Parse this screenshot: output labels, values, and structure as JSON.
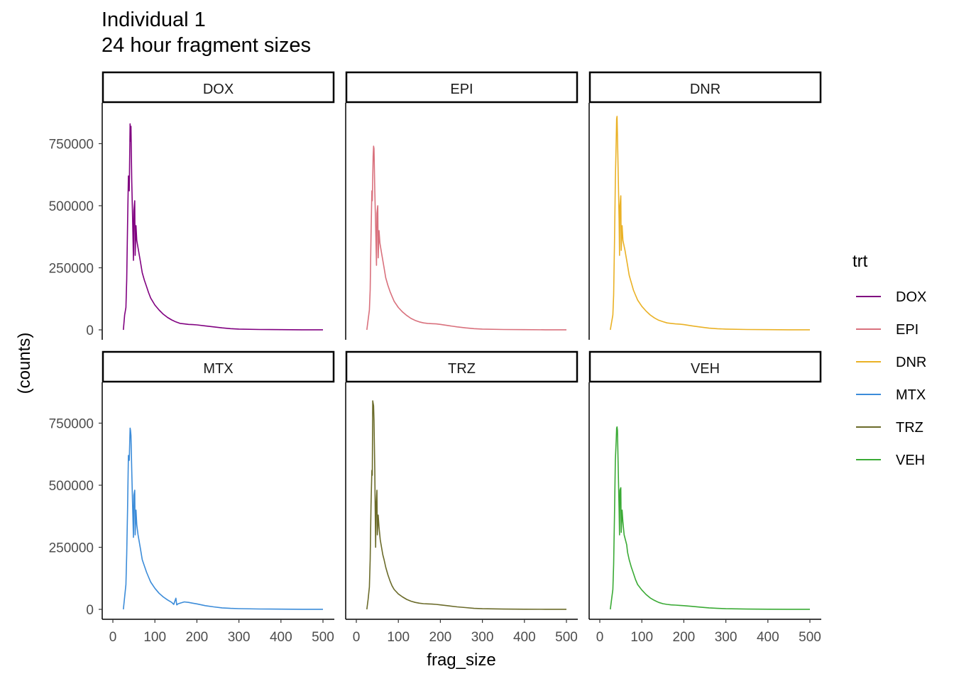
{
  "title": {
    "line1": "Individual 1",
    "line2": "24 hour fragment sizes"
  },
  "chart_data": {
    "type": "line",
    "xlabel": "frag_size",
    "ylabel": "(counts)",
    "xlim": [
      0,
      500
    ],
    "ylim": [
      0,
      900000
    ],
    "x_ticks": [
      0,
      100,
      200,
      300,
      400,
      500
    ],
    "y_ticks": [
      0,
      250000,
      500000,
      750000
    ],
    "grid": false,
    "legend": {
      "title": "trt",
      "placement": "right",
      "entries": [
        "DOX",
        "EPI",
        "DNR",
        "MTX",
        "TRZ",
        "VEH"
      ]
    },
    "facets": [
      {
        "name": "DOX",
        "color": "#800080",
        "points": [
          [
            25,
            0
          ],
          [
            28,
            60000
          ],
          [
            31,
            90000
          ],
          [
            33,
            200000
          ],
          [
            35,
            420000
          ],
          [
            37,
            620000
          ],
          [
            39,
            560000
          ],
          [
            41,
            830000
          ],
          [
            42,
            760000
          ],
          [
            43,
            820000
          ],
          [
            45,
            600000
          ],
          [
            47,
            450000
          ],
          [
            49,
            280000
          ],
          [
            50,
            480000
          ],
          [
            52,
            520000
          ],
          [
            53,
            300000
          ],
          [
            55,
            420000
          ],
          [
            57,
            360000
          ],
          [
            60,
            330000
          ],
          [
            63,
            300000
          ],
          [
            66,
            270000
          ],
          [
            70,
            230000
          ],
          [
            75,
            200000
          ],
          [
            80,
            175000
          ],
          [
            85,
            150000
          ],
          [
            90,
            128000
          ],
          [
            100,
            100000
          ],
          [
            110,
            80000
          ],
          [
            120,
            63000
          ],
          [
            130,
            50000
          ],
          [
            140,
            40000
          ],
          [
            150,
            32000
          ],
          [
            160,
            26000
          ],
          [
            170,
            24000
          ],
          [
            180,
            22000
          ],
          [
            190,
            21000
          ],
          [
            200,
            20000
          ],
          [
            220,
            16000
          ],
          [
            240,
            12000
          ],
          [
            260,
            8000
          ],
          [
            280,
            5000
          ],
          [
            300,
            3000
          ],
          [
            350,
            1500
          ],
          [
            400,
            800
          ],
          [
            450,
            400
          ],
          [
            500,
            200
          ]
        ]
      },
      {
        "name": "EPI",
        "color": "#D9717D",
        "points": [
          [
            25,
            0
          ],
          [
            28,
            40000
          ],
          [
            31,
            80000
          ],
          [
            33,
            160000
          ],
          [
            35,
            380000
          ],
          [
            37,
            560000
          ],
          [
            38,
            520000
          ],
          [
            40,
            700000
          ],
          [
            41,
            740000
          ],
          [
            42,
            730000
          ],
          [
            44,
            560000
          ],
          [
            46,
            420000
          ],
          [
            48,
            260000
          ],
          [
            49,
            470000
          ],
          [
            51,
            500000
          ],
          [
            52,
            290000
          ],
          [
            54,
            400000
          ],
          [
            56,
            350000
          ],
          [
            60,
            310000
          ],
          [
            63,
            280000
          ],
          [
            66,
            250000
          ],
          [
            70,
            210000
          ],
          [
            75,
            180000
          ],
          [
            80,
            155000
          ],
          [
            85,
            135000
          ],
          [
            90,
            115000
          ],
          [
            100,
            90000
          ],
          [
            110,
            72000
          ],
          [
            120,
            58000
          ],
          [
            130,
            46000
          ],
          [
            140,
            38000
          ],
          [
            150,
            32000
          ],
          [
            160,
            28000
          ],
          [
            170,
            26000
          ],
          [
            180,
            25000
          ],
          [
            190,
            24000
          ],
          [
            200,
            22000
          ],
          [
            220,
            17000
          ],
          [
            240,
            12000
          ],
          [
            260,
            8000
          ],
          [
            280,
            5000
          ],
          [
            300,
            3000
          ],
          [
            350,
            1500
          ],
          [
            400,
            800
          ],
          [
            450,
            400
          ],
          [
            500,
            200
          ]
        ]
      },
      {
        "name": "DNR",
        "color": "#EAB125",
        "points": [
          [
            25,
            0
          ],
          [
            28,
            30000
          ],
          [
            31,
            60000
          ],
          [
            33,
            140000
          ],
          [
            35,
            350000
          ],
          [
            37,
            600000
          ],
          [
            39,
            760000
          ],
          [
            40,
            850000
          ],
          [
            41,
            860000
          ],
          [
            42,
            780000
          ],
          [
            44,
            620000
          ],
          [
            46,
            440000
          ],
          [
            47,
            300000
          ],
          [
            48,
            500000
          ],
          [
            50,
            540000
          ],
          [
            51,
            320000
          ],
          [
            53,
            420000
          ],
          [
            55,
            360000
          ],
          [
            60,
            320000
          ],
          [
            63,
            290000
          ],
          [
            66,
            260000
          ],
          [
            70,
            220000
          ],
          [
            75,
            190000
          ],
          [
            80,
            160000
          ],
          [
            85,
            140000
          ],
          [
            90,
            120000
          ],
          [
            100,
            95000
          ],
          [
            110,
            76000
          ],
          [
            120,
            60000
          ],
          [
            130,
            48000
          ],
          [
            140,
            39000
          ],
          [
            150,
            33000
          ],
          [
            160,
            28000
          ],
          [
            170,
            26000
          ],
          [
            180,
            24000
          ],
          [
            190,
            23000
          ],
          [
            200,
            21000
          ],
          [
            220,
            16000
          ],
          [
            240,
            11000
          ],
          [
            260,
            7000
          ],
          [
            280,
            4500
          ],
          [
            300,
            3000
          ],
          [
            350,
            1500
          ],
          [
            400,
            800
          ],
          [
            450,
            400
          ],
          [
            500,
            200
          ]
        ]
      },
      {
        "name": "MTX",
        "color": "#3C8CD9",
        "points": [
          [
            25,
            0
          ],
          [
            28,
            50000
          ],
          [
            31,
            100000
          ],
          [
            33,
            220000
          ],
          [
            35,
            400000
          ],
          [
            37,
            620000
          ],
          [
            39,
            600000
          ],
          [
            41,
            730000
          ],
          [
            42,
            720000
          ],
          [
            43,
            700000
          ],
          [
            45,
            560000
          ],
          [
            47,
            420000
          ],
          [
            49,
            290000
          ],
          [
            50,
            460000
          ],
          [
            52,
            480000
          ],
          [
            53,
            300000
          ],
          [
            55,
            400000
          ],
          [
            57,
            340000
          ],
          [
            60,
            300000
          ],
          [
            63,
            270000
          ],
          [
            66,
            240000
          ],
          [
            70,
            200000
          ],
          [
            75,
            175000
          ],
          [
            80,
            150000
          ],
          [
            85,
            130000
          ],
          [
            90,
            110000
          ],
          [
            100,
            85000
          ],
          [
            110,
            65000
          ],
          [
            120,
            50000
          ],
          [
            130,
            38000
          ],
          [
            140,
            28000
          ],
          [
            145,
            20000
          ],
          [
            150,
            45000
          ],
          [
            152,
            18000
          ],
          [
            155,
            22000
          ],
          [
            160,
            25000
          ],
          [
            170,
            30000
          ],
          [
            180,
            28000
          ],
          [
            190,
            25000
          ],
          [
            200,
            22000
          ],
          [
            220,
            15000
          ],
          [
            240,
            10000
          ],
          [
            260,
            6000
          ],
          [
            280,
            4000
          ],
          [
            300,
            3000
          ],
          [
            350,
            1500
          ],
          [
            400,
            800
          ],
          [
            450,
            400
          ],
          [
            500,
            200
          ]
        ]
      },
      {
        "name": "TRZ",
        "color": "#6B6B2A",
        "points": [
          [
            25,
            0
          ],
          [
            28,
            40000
          ],
          [
            31,
            90000
          ],
          [
            33,
            200000
          ],
          [
            35,
            420000
          ],
          [
            37,
            560000
          ],
          [
            38,
            540000
          ],
          [
            39,
            840000
          ],
          [
            40,
            830000
          ],
          [
            41,
            820000
          ],
          [
            42,
            760000
          ],
          [
            44,
            560000
          ],
          [
            45,
            400000
          ],
          [
            46,
            250000
          ],
          [
            47,
            420000
          ],
          [
            49,
            480000
          ],
          [
            50,
            300000
          ],
          [
            52,
            380000
          ],
          [
            54,
            330000
          ],
          [
            57,
            280000
          ],
          [
            60,
            250000
          ],
          [
            63,
            220000
          ],
          [
            66,
            200000
          ],
          [
            70,
            170000
          ],
          [
            75,
            140000
          ],
          [
            80,
            115000
          ],
          [
            85,
            95000
          ],
          [
            90,
            80000
          ],
          [
            100,
            62000
          ],
          [
            110,
            50000
          ],
          [
            120,
            40000
          ],
          [
            130,
            33000
          ],
          [
            140,
            28000
          ],
          [
            150,
            25000
          ],
          [
            160,
            23000
          ],
          [
            170,
            22000
          ],
          [
            180,
            21000
          ],
          [
            190,
            20000
          ],
          [
            200,
            18000
          ],
          [
            220,
            14000
          ],
          [
            240,
            10000
          ],
          [
            260,
            7000
          ],
          [
            280,
            4000
          ],
          [
            300,
            2500
          ],
          [
            350,
            1200
          ],
          [
            400,
            600
          ],
          [
            450,
            300
          ],
          [
            500,
            150
          ]
        ]
      },
      {
        "name": "VEH",
        "color": "#3AAA35",
        "points": [
          [
            25,
            0
          ],
          [
            28,
            40000
          ],
          [
            31,
            80000
          ],
          [
            33,
            180000
          ],
          [
            35,
            380000
          ],
          [
            37,
            600000
          ],
          [
            39,
            680000
          ],
          [
            40,
            730000
          ],
          [
            41,
            735000
          ],
          [
            42,
            720000
          ],
          [
            44,
            560000
          ],
          [
            46,
            400000
          ],
          [
            47,
            300000
          ],
          [
            48,
            480000
          ],
          [
            50,
            490000
          ],
          [
            51,
            310000
          ],
          [
            53,
            400000
          ],
          [
            55,
            350000
          ],
          [
            58,
            300000
          ],
          [
            61,
            280000
          ],
          [
            64,
            260000
          ],
          [
            66,
            230000
          ],
          [
            70,
            200000
          ],
          [
            75,
            170000
          ],
          [
            80,
            145000
          ],
          [
            85,
            120000
          ],
          [
            90,
            100000
          ],
          [
            100,
            78000
          ],
          [
            110,
            60000
          ],
          [
            120,
            46000
          ],
          [
            130,
            36000
          ],
          [
            140,
            28000
          ],
          [
            150,
            23000
          ],
          [
            160,
            20000
          ],
          [
            170,
            18000
          ],
          [
            180,
            17000
          ],
          [
            190,
            16000
          ],
          [
            200,
            15000
          ],
          [
            220,
            12000
          ],
          [
            240,
            9000
          ],
          [
            260,
            6000
          ],
          [
            280,
            4000
          ],
          [
            300,
            2500
          ],
          [
            350,
            1200
          ],
          [
            400,
            600
          ],
          [
            450,
            300
          ],
          [
            500,
            150
          ]
        ]
      }
    ]
  }
}
